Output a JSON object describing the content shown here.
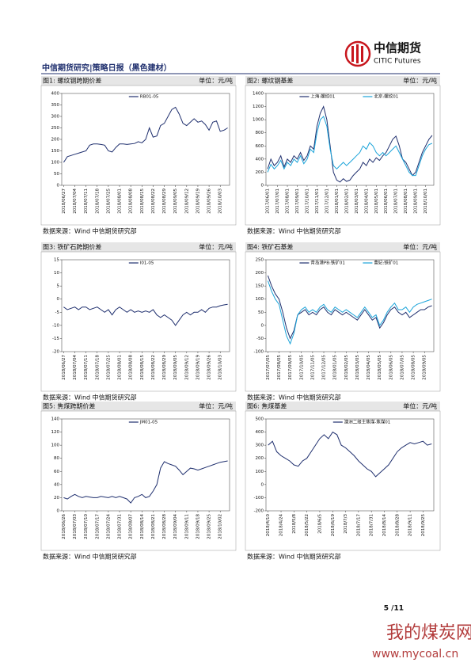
{
  "header": {
    "brand_cn": "中信期货",
    "brand_en": "CITIC Futures",
    "report_title": "中信期货研究|策略日报（黑色建材）"
  },
  "footer": {
    "page": "5 /11"
  },
  "watermark": {
    "cn": "我的煤炭网",
    "url": "www.mycoal.cn"
  },
  "chart_data": [
    {
      "type": "line",
      "title": "图1: 螺纹钢跨期价差",
      "unit": "单位：元/吨",
      "source": "数据来源：Wind  中信期货研究部",
      "categories": [
        "2018/06/27",
        null,
        null,
        "2018/07/04",
        null,
        null,
        "2018/07/11",
        null,
        null,
        "2018/07/18",
        null,
        null,
        "2018/07/25",
        null,
        null,
        "2018/08/01",
        null,
        null,
        "2018/08/08",
        null,
        null,
        "2018/08/15",
        null,
        null,
        "2018/08/22",
        null,
        null,
        "2018/08/29",
        null,
        null,
        "2018/09/05",
        null,
        null,
        "2018/09/12",
        null,
        null,
        "2018/09/19",
        null,
        null,
        "2018/09/26",
        null,
        null,
        "2018/10/03",
        null,
        null
      ],
      "series": [
        {
          "name": "RB01-05",
          "color": "#1f2f6e",
          "values": [
            100,
            125,
            130,
            135,
            140,
            145,
            150,
            175,
            180,
            180,
            178,
            175,
            150,
            145,
            165,
            180,
            180,
            178,
            180,
            182,
            190,
            185,
            200,
            250,
            210,
            215,
            260,
            270,
            300,
            330,
            340,
            310,
            270,
            260,
            275,
            290,
            275,
            280,
            265,
            240,
            275,
            280,
            235,
            240,
            250
          ]
        }
      ],
      "ylim": [
        0,
        400
      ],
      "yticks": [
        0,
        50,
        100,
        150,
        200,
        250,
        300,
        350,
        400
      ]
    },
    {
      "type": "line",
      "title": "图2: 螺纹钢基差",
      "unit": "单位：元/吨",
      "source": "数据来源：Wind  中信期货研究部",
      "categories": [
        "2017/06/01",
        null,
        null,
        "2017/07/01",
        null,
        null,
        "2017/08/01",
        null,
        null,
        "2017/09/01",
        null,
        null,
        "2017/10/01",
        null,
        null,
        "2017/11/01",
        null,
        null,
        "2017/12/01",
        null,
        null,
        "2018/01/01",
        null,
        null,
        "2018/02/01",
        null,
        null,
        "2018/03/01",
        null,
        null,
        "2018/04/01",
        null,
        null,
        "2018/05/01",
        null,
        null,
        "2018/06/01",
        null,
        null,
        "2018/07/01",
        null,
        null,
        "2018/08/01",
        null,
        null,
        "2018/09/01",
        null,
        null,
        "2018/10/01",
        null,
        null
      ],
      "series": [
        {
          "name": "上海:螺纹01",
          "color": "#1f2f6e",
          "values": [
            250,
            400,
            300,
            350,
            450,
            280,
            400,
            350,
            450,
            400,
            500,
            380,
            450,
            600,
            550,
            900,
            1100,
            1200,
            1000,
            600,
            200,
            80,
            50,
            100,
            60,
            80,
            150,
            200,
            250,
            350,
            300,
            400,
            350,
            420,
            380,
            450,
            500,
            600,
            700,
            750,
            600,
            400,
            350,
            250,
            150,
            200,
            350,
            500,
            600,
            700,
            760
          ]
        },
        {
          "name": "北京:螺纹01",
          "color": "#1aa3d9",
          "values": [
            200,
            320,
            250,
            300,
            380,
            250,
            350,
            300,
            400,
            350,
            450,
            330,
            400,
            550,
            500,
            800,
            1000,
            1050,
            900,
            550,
            300,
            250,
            300,
            350,
            300,
            350,
            400,
            450,
            500,
            600,
            550,
            650,
            600,
            500,
            450,
            500,
            450,
            500,
            550,
            600,
            500,
            400,
            300,
            200,
            150,
            150,
            300,
            450,
            550,
            620,
            640
          ]
        }
      ],
      "ylim": [
        0,
        1400
      ],
      "yticks": [
        0,
        200,
        400,
        600,
        800,
        1000,
        1200,
        1400
      ]
    },
    {
      "type": "line",
      "title": "图3: 铁矿石跨期价差",
      "unit": "单位：元/吨",
      "source": "数据来源：Wind  中信期货研究部",
      "categories": [
        "2018/06/27",
        null,
        null,
        "2018/07/04",
        null,
        null,
        "2018/07/11",
        null,
        null,
        "2018/07/18",
        null,
        null,
        "2018/07/25",
        null,
        null,
        "2018/08/01",
        null,
        null,
        "2018/08/08",
        null,
        null,
        "2018/08/15",
        null,
        null,
        "2018/08/22",
        null,
        null,
        "2018/08/29",
        null,
        null,
        "2018/09/05",
        null,
        null,
        "2018/09/12",
        null,
        null,
        "2018/09/19",
        null,
        null,
        "2018/09/26",
        null,
        null,
        "2018/10/03",
        null,
        null
      ],
      "series": [
        {
          "name": "I01-05",
          "color": "#1f2f6e",
          "values": [
            -3,
            -4,
            -3.5,
            -3,
            -4,
            -3,
            -3,
            -4,
            -3.5,
            -3,
            -4,
            -5,
            -4,
            -6,
            -4,
            -3,
            -4,
            -5,
            -4,
            -5,
            -4.5,
            -5,
            -4.5,
            -5,
            -4,
            -6,
            -7,
            -6,
            -7,
            -8,
            -10,
            -8,
            -6,
            -5,
            -6,
            -5,
            -5,
            -4,
            -5,
            -3.5,
            -3,
            -3,
            -2.5,
            -2.2,
            -2
          ]
        }
      ],
      "ylim": [
        -20,
        15
      ],
      "yticks": [
        -20,
        -15,
        -10,
        -5,
        0,
        5,
        10,
        15
      ]
    },
    {
      "type": "line",
      "title": "图4: 铁矿石基差",
      "unit": "单位：元/吨",
      "source": "数据来源：Wind  中信期货研究部",
      "categories": [
        "2017/07/05",
        null,
        null,
        "2017/08/05",
        null,
        null,
        "2017/09/05",
        null,
        null,
        "2017/10/05",
        null,
        null,
        "2017/11/05",
        null,
        null,
        "2017/12/05",
        null,
        null,
        "2018/01/05",
        null,
        null,
        "2018/02/05",
        null,
        null,
        "2018/03/05",
        null,
        null,
        "2018/04/05",
        null,
        null,
        "2018/05/05",
        null,
        null,
        "2018/06/05",
        null,
        null,
        "2018/07/05",
        null,
        null,
        "2018/08/05",
        null,
        null,
        "2018/09/05",
        null,
        null
      ],
      "series": [
        {
          "name": "青岛港PB:铁矿01",
          "color": "#1f2f6e",
          "values": [
            190,
            150,
            120,
            100,
            50,
            -10,
            -50,
            -20,
            40,
            50,
            60,
            40,
            50,
            40,
            60,
            70,
            50,
            40,
            60,
            50,
            40,
            50,
            40,
            30,
            20,
            40,
            60,
            40,
            20,
            30,
            -10,
            10,
            40,
            60,
            70,
            50,
            40,
            50,
            30,
            40,
            50,
            60,
            60,
            70,
            75
          ]
        },
        {
          "name": "曹妃:铁矿01",
          "color": "#1aa3d9",
          "values": [
            170,
            130,
            100,
            80,
            20,
            -40,
            -70,
            -30,
            40,
            60,
            70,
            50,
            60,
            50,
            70,
            80,
            60,
            50,
            70,
            60,
            50,
            60,
            50,
            40,
            30,
            50,
            70,
            50,
            30,
            40,
            0,
            20,
            50,
            70,
            85,
            60,
            60,
            70,
            50,
            70,
            80,
            85,
            90,
            95,
            100
          ]
        }
      ],
      "ylim": [
        -100,
        250
      ],
      "yticks": [
        -100,
        -50,
        0,
        50,
        100,
        150,
        200,
        250
      ]
    },
    {
      "type": "line",
      "title": "图5: 焦煤跨期价差",
      "unit": "单位：元/吨",
      "source": "数据来源：Wind  中信期货研究部",
      "categories": [
        "2018/06/26",
        null,
        null,
        "2018/07/03",
        null,
        null,
        "2018/07/10",
        null,
        null,
        "2018/07/17",
        null,
        null,
        "2018/07/24",
        null,
        null,
        "2018/07/31",
        null,
        null,
        "2018/08/07",
        null,
        null,
        "2018/08/14",
        null,
        null,
        "2018/08/21",
        null,
        null,
        "2018/08/28",
        null,
        null,
        "2018/09/04",
        null,
        null,
        "2018/09/11",
        null,
        null,
        "2018/09/18",
        null,
        null,
        "2018/09/25",
        null,
        null,
        "2018/10/02",
        null,
        null
      ],
      "series": [
        {
          "name": "JM01-05",
          "color": "#1f2f6e",
          "values": [
            20,
            18,
            22,
            25,
            22,
            20,
            22,
            21,
            20,
            20,
            22,
            21,
            20,
            22,
            20,
            22,
            20,
            18,
            12,
            20,
            22,
            25,
            20,
            22,
            30,
            40,
            65,
            75,
            72,
            70,
            68,
            62,
            55,
            60,
            65,
            64,
            62,
            64,
            66,
            68,
            70,
            72,
            74,
            75,
            76
          ]
        }
      ],
      "ylim": [
        0,
        140
      ],
      "yticks": [
        0,
        20,
        40,
        60,
        80,
        100,
        120,
        140
      ]
    },
    {
      "type": "line",
      "title": "图6: 焦煤基差",
      "unit": "单位：元/吨",
      "source": "数据来源：Wind  中信期货研究部",
      "categories": [
        "2018/4/10",
        null,
        null,
        "2018/4/24",
        null,
        null,
        "2018/5/8",
        null,
        null,
        "2018/5/22",
        null,
        null,
        "2018/6/5",
        null,
        null,
        "2018/6/19",
        null,
        null,
        "2018/7/3",
        null,
        null,
        "2018/7/17",
        null,
        null,
        "2018/7/31",
        null,
        null,
        "2018/8/14",
        null,
        null,
        "2018/8/28",
        null,
        null,
        "2018/9/11",
        null,
        null,
        "2018/9/25",
        null,
        null
      ],
      "series": [
        {
          "name": "澳洲二级主焦煤-焦煤01",
          "color": "#1f2f6e",
          "values": [
            300,
            330,
            250,
            220,
            200,
            180,
            150,
            140,
            180,
            200,
            250,
            300,
            350,
            380,
            350,
            400,
            380,
            300,
            280,
            250,
            220,
            180,
            150,
            120,
            100,
            60,
            90,
            120,
            150,
            200,
            250,
            280,
            300,
            320,
            310,
            320,
            330,
            300,
            310
          ]
        }
      ],
      "ylim": [
        -200,
        500
      ],
      "yticks": [
        -200,
        -100,
        0,
        100,
        200,
        300,
        400,
        500
      ]
    }
  ]
}
